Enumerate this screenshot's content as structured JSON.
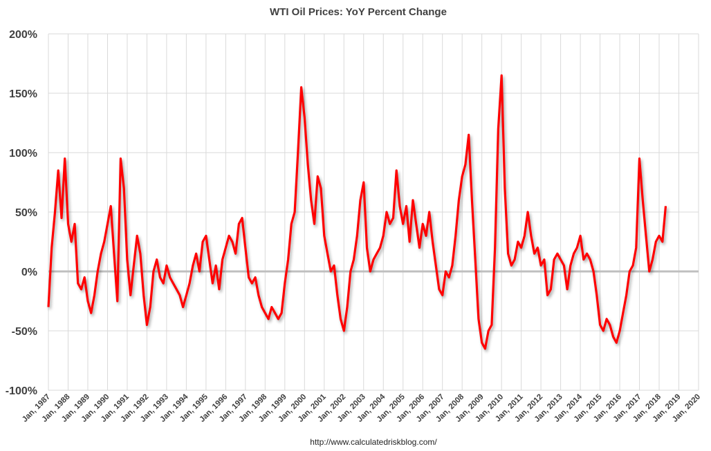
{
  "chart_data": {
    "type": "line",
    "title": "WTI Oil Prices: YoY Percent Change",
    "xlabel": "",
    "ylabel": "",
    "ylim": [
      -100,
      200
    ],
    "yticks": [
      -100,
      -50,
      0,
      50,
      100,
      150,
      200
    ],
    "ytick_labels": [
      "-100%",
      "-50%",
      "0%",
      "50%",
      "100%",
      "150%",
      "200%"
    ],
    "xlim": [
      "1987-01",
      "2020-01"
    ],
    "xtick_labels": [
      "Jan, 1987",
      "Jan, 1988",
      "Jan, 1989",
      "Jan, 1990",
      "Jan, 1991",
      "Jan, 1992",
      "Jan, 1993",
      "Jan, 1994",
      "Jan, 1995",
      "Jan, 1996",
      "Jan, 1997",
      "Jan, 1998",
      "Jan, 1999",
      "Jan, 2000",
      "Jan, 2001",
      "Jan, 2002",
      "Jan, 2003",
      "Jan, 2004",
      "Jan, 2005",
      "Jan, 2006",
      "Jan, 2007",
      "Jan, 2008",
      "Jan, 2009",
      "Jan, 2010",
      "Jan, 2011",
      "Jan, 2012",
      "Jan, 2013",
      "Jan, 2014",
      "Jan, 2015",
      "Jan, 2016",
      "Jan, 2017",
      "Jan, 2018",
      "Jan, 2019",
      "Jan, 2020"
    ],
    "grid": true,
    "legend": "none",
    "colors": {
      "series": "#ff0000",
      "zero_line": "#bfbfbf",
      "grid": "#d9d9d9"
    },
    "series": [
      {
        "points": [
          [
            "1987-01",
            -30
          ],
          [
            "1987-03",
            20
          ],
          [
            "1987-05",
            50
          ],
          [
            "1987-07",
            85
          ],
          [
            "1987-09",
            45
          ],
          [
            "1987-11",
            95
          ],
          [
            "1988-01",
            40
          ],
          [
            "1988-03",
            25
          ],
          [
            "1988-05",
            40
          ],
          [
            "1988-07",
            -10
          ],
          [
            "1988-09",
            -15
          ],
          [
            "1988-11",
            -5
          ],
          [
            "1989-01",
            -25
          ],
          [
            "1989-03",
            -35
          ],
          [
            "1989-05",
            -20
          ],
          [
            "1989-07",
            0
          ],
          [
            "1989-09",
            15
          ],
          [
            "1989-11",
            25
          ],
          [
            "1990-01",
            40
          ],
          [
            "1990-03",
            55
          ],
          [
            "1990-05",
            15
          ],
          [
            "1990-07",
            -25
          ],
          [
            "1990-09",
            95
          ],
          [
            "1990-11",
            70
          ],
          [
            "1991-01",
            10
          ],
          [
            "1991-03",
            -20
          ],
          [
            "1991-05",
            5
          ],
          [
            "1991-07",
            30
          ],
          [
            "1991-09",
            15
          ],
          [
            "1991-11",
            -20
          ],
          [
            "1992-01",
            -45
          ],
          [
            "1992-03",
            -30
          ],
          [
            "1992-05",
            0
          ],
          [
            "1992-07",
            10
          ],
          [
            "1992-09",
            -5
          ],
          [
            "1992-11",
            -10
          ],
          [
            "1993-01",
            5
          ],
          [
            "1993-03",
            -5
          ],
          [
            "1993-05",
            -10
          ],
          [
            "1993-07",
            -15
          ],
          [
            "1993-09",
            -20
          ],
          [
            "1993-11",
            -30
          ],
          [
            "1994-01",
            -20
          ],
          [
            "1994-03",
            -10
          ],
          [
            "1994-05",
            5
          ],
          [
            "1994-07",
            15
          ],
          [
            "1994-09",
            0
          ],
          [
            "1994-11",
            25
          ],
          [
            "1995-01",
            30
          ],
          [
            "1995-03",
            10
          ],
          [
            "1995-05",
            -10
          ],
          [
            "1995-07",
            5
          ],
          [
            "1995-09",
            -15
          ],
          [
            "1995-11",
            10
          ],
          [
            "1996-01",
            20
          ],
          [
            "1996-03",
            30
          ],
          [
            "1996-05",
            25
          ],
          [
            "1996-07",
            15
          ],
          [
            "1996-09",
            40
          ],
          [
            "1996-11",
            45
          ],
          [
            "1997-01",
            20
          ],
          [
            "1997-03",
            -5
          ],
          [
            "1997-05",
            -10
          ],
          [
            "1997-07",
            -5
          ],
          [
            "1997-09",
            -20
          ],
          [
            "1997-11",
            -30
          ],
          [
            "1998-01",
            -35
          ],
          [
            "1998-03",
            -40
          ],
          [
            "1998-05",
            -30
          ],
          [
            "1998-07",
            -35
          ],
          [
            "1998-09",
            -40
          ],
          [
            "1998-11",
            -35
          ],
          [
            "1999-01",
            -10
          ],
          [
            "1999-03",
            10
          ],
          [
            "1999-05",
            40
          ],
          [
            "1999-07",
            50
          ],
          [
            "1999-09",
            100
          ],
          [
            "1999-11",
            155
          ],
          [
            "2000-01",
            130
          ],
          [
            "2000-03",
            90
          ],
          [
            "2000-05",
            60
          ],
          [
            "2000-07",
            40
          ],
          [
            "2000-09",
            80
          ],
          [
            "2000-11",
            70
          ],
          [
            "2001-01",
            30
          ],
          [
            "2001-03",
            15
          ],
          [
            "2001-05",
            0
          ],
          [
            "2001-07",
            5
          ],
          [
            "2001-09",
            -20
          ],
          [
            "2001-11",
            -40
          ],
          [
            "2002-01",
            -50
          ],
          [
            "2002-03",
            -30
          ],
          [
            "2002-05",
            0
          ],
          [
            "2002-07",
            10
          ],
          [
            "2002-09",
            30
          ],
          [
            "2002-11",
            60
          ],
          [
            "2003-01",
            75
          ],
          [
            "2003-03",
            20
          ],
          [
            "2003-05",
            0
          ],
          [
            "2003-07",
            10
          ],
          [
            "2003-09",
            15
          ],
          [
            "2003-11",
            20
          ],
          [
            "2004-01",
            30
          ],
          [
            "2004-03",
            50
          ],
          [
            "2004-05",
            40
          ],
          [
            "2004-07",
            45
          ],
          [
            "2004-09",
            85
          ],
          [
            "2004-11",
            55
          ],
          [
            "2005-01",
            40
          ],
          [
            "2005-03",
            55
          ],
          [
            "2005-05",
            25
          ],
          [
            "2005-07",
            60
          ],
          [
            "2005-09",
            40
          ],
          [
            "2005-11",
            20
          ],
          [
            "2006-01",
            40
          ],
          [
            "2006-03",
            30
          ],
          [
            "2006-05",
            50
          ],
          [
            "2006-07",
            25
          ],
          [
            "2006-09",
            5
          ],
          [
            "2006-11",
            -15
          ],
          [
            "2007-01",
            -20
          ],
          [
            "2007-03",
            0
          ],
          [
            "2007-05",
            -5
          ],
          [
            "2007-07",
            5
          ],
          [
            "2007-09",
            30
          ],
          [
            "2007-11",
            60
          ],
          [
            "2008-01",
            80
          ],
          [
            "2008-03",
            90
          ],
          [
            "2008-05",
            115
          ],
          [
            "2008-07",
            60
          ],
          [
            "2008-09",
            10
          ],
          [
            "2008-11",
            -40
          ],
          [
            "2009-01",
            -60
          ],
          [
            "2009-03",
            -65
          ],
          [
            "2009-05",
            -50
          ],
          [
            "2009-07",
            -45
          ],
          [
            "2009-09",
            20
          ],
          [
            "2009-11",
            120
          ],
          [
            "2010-01",
            165
          ],
          [
            "2010-03",
            70
          ],
          [
            "2010-05",
            15
          ],
          [
            "2010-07",
            5
          ],
          [
            "2010-09",
            10
          ],
          [
            "2010-11",
            25
          ],
          [
            "2011-01",
            20
          ],
          [
            "2011-03",
            30
          ],
          [
            "2011-05",
            50
          ],
          [
            "2011-07",
            30
          ],
          [
            "2011-09",
            15
          ],
          [
            "2011-11",
            20
          ],
          [
            "2012-01",
            5
          ],
          [
            "2012-03",
            10
          ],
          [
            "2012-05",
            -20
          ],
          [
            "2012-07",
            -15
          ],
          [
            "2012-09",
            10
          ],
          [
            "2012-11",
            15
          ],
          [
            "2013-01",
            10
          ],
          [
            "2013-03",
            5
          ],
          [
            "2013-05",
            -15
          ],
          [
            "2013-07",
            5
          ],
          [
            "2013-09",
            15
          ],
          [
            "2013-11",
            20
          ],
          [
            "2014-01",
            30
          ],
          [
            "2014-03",
            10
          ],
          [
            "2014-05",
            15
          ],
          [
            "2014-07",
            10
          ],
          [
            "2014-09",
            0
          ],
          [
            "2014-11",
            -20
          ],
          [
            "2015-01",
            -45
          ],
          [
            "2015-03",
            -50
          ],
          [
            "2015-05",
            -40
          ],
          [
            "2015-07",
            -45
          ],
          [
            "2015-09",
            -55
          ],
          [
            "2015-11",
            -60
          ],
          [
            "2016-01",
            -50
          ],
          [
            "2016-03",
            -35
          ],
          [
            "2016-05",
            -20
          ],
          [
            "2016-07",
            0
          ],
          [
            "2016-09",
            5
          ],
          [
            "2016-11",
            20
          ],
          [
            "2017-01",
            95
          ],
          [
            "2017-03",
            60
          ],
          [
            "2017-05",
            30
          ],
          [
            "2017-07",
            0
          ],
          [
            "2017-09",
            10
          ],
          [
            "2017-11",
            25
          ],
          [
            "2018-01",
            30
          ],
          [
            "2018-03",
            25
          ],
          [
            "2018-05",
            55
          ]
        ]
      }
    ]
  },
  "footer": "http://www.calculatedriskblog.com/"
}
